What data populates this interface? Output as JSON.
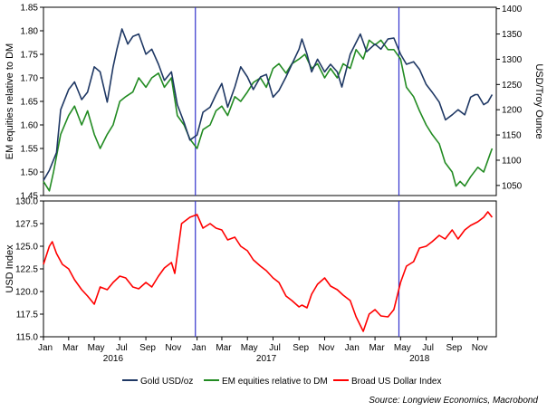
{
  "colors": {
    "gold": "#1f3864",
    "em": "#228b22",
    "usd": "#ff0000",
    "event_lines": "#3333cc",
    "frame": "#000000"
  },
  "chart_data": [
    {
      "type": "line",
      "panel": "top",
      "x_range": [
        "2016-01-01",
        "2018-12-15"
      ],
      "left_axis": {
        "label": "EM equities relative to DM",
        "ylim": [
          1.45,
          1.85
        ],
        "ticks": [
          "1.45",
          "1.50",
          "1.55",
          "1.60",
          "1.65",
          "1.70",
          "1.75",
          "1.80",
          "1.85"
        ]
      },
      "right_axis": {
        "label": "USD/Troy Ounce",
        "ylim": [
          1030,
          1403
        ],
        "ticks": [
          "1050",
          "1100",
          "1150",
          "1200",
          "1250",
          "1300",
          "1350",
          "1400"
        ]
      },
      "vertical_lines": [
        "2016-12-28",
        "2018-04-27"
      ],
      "series": [
        {
          "name": "Gold USD/oz",
          "axis": "right",
          "x": [
            "2016-01-01",
            "2016-01-15",
            "2016-02-01",
            "2016-02-11",
            "2016-03-01",
            "2016-03-15",
            "2016-04-01",
            "2016-04-15",
            "2016-05-01",
            "2016-05-15",
            "2016-06-01",
            "2016-06-15",
            "2016-06-24",
            "2016-07-06",
            "2016-07-20",
            "2016-08-01",
            "2016-08-15",
            "2016-09-01",
            "2016-09-15",
            "2016-10-01",
            "2016-10-15",
            "2016-11-01",
            "2016-11-15",
            "2016-12-01",
            "2016-12-15",
            "2017-01-01",
            "2017-01-15",
            "2017-02-01",
            "2017-02-15",
            "2017-03-01",
            "2017-03-15",
            "2017-04-01",
            "2017-04-15",
            "2017-05-01",
            "2017-05-15",
            "2017-06-01",
            "2017-06-15",
            "2017-07-01",
            "2017-07-15",
            "2017-08-01",
            "2017-08-15",
            "2017-09-01",
            "2017-09-08",
            "2017-09-20",
            "2017-10-01",
            "2017-10-15",
            "2017-11-01",
            "2017-11-15",
            "2017-12-01",
            "2017-12-12",
            "2018-01-01",
            "2018-01-25",
            "2018-02-09",
            "2018-03-01",
            "2018-03-15",
            "2018-04-01",
            "2018-04-15",
            "2018-05-01",
            "2018-05-15",
            "2018-06-01",
            "2018-06-15",
            "2018-07-01",
            "2018-07-15",
            "2018-08-01",
            "2018-08-16",
            "2018-09-01",
            "2018-09-15",
            "2018-10-01",
            "2018-10-15",
            "2018-10-26",
            "2018-11-01",
            "2018-11-15",
            "2018-11-25",
            "2018-12-05"
          ],
          "y": [
            1060,
            1080,
            1115,
            1200,
            1240,
            1255,
            1220,
            1235,
            1285,
            1275,
            1215,
            1285,
            1320,
            1360,
            1330,
            1345,
            1350,
            1310,
            1320,
            1290,
            1258,
            1275,
            1210,
            1175,
            1140,
            1150,
            1195,
            1205,
            1230,
            1252,
            1205,
            1245,
            1285,
            1265,
            1240,
            1265,
            1270,
            1225,
            1238,
            1265,
            1290,
            1320,
            1340,
            1310,
            1275,
            1300,
            1275,
            1290,
            1275,
            1245,
            1310,
            1350,
            1315,
            1330,
            1320,
            1340,
            1342,
            1310,
            1290,
            1295,
            1280,
            1250,
            1235,
            1215,
            1180,
            1190,
            1200,
            1190,
            1225,
            1230,
            1230,
            1210,
            1215,
            1230
          ]
        },
        {
          "name": "EM equities relative to DM",
          "axis": "left",
          "x": [
            "2016-01-01",
            "2016-01-15",
            "2016-01-25",
            "2016-02-11",
            "2016-03-01",
            "2016-03-15",
            "2016-04-01",
            "2016-04-15",
            "2016-05-01",
            "2016-05-15",
            "2016-06-01",
            "2016-06-15",
            "2016-07-01",
            "2016-07-15",
            "2016-08-01",
            "2016-08-15",
            "2016-09-01",
            "2016-09-15",
            "2016-10-01",
            "2016-10-15",
            "2016-11-01",
            "2016-11-15",
            "2016-12-01",
            "2016-12-15",
            "2017-01-01",
            "2017-01-15",
            "2017-02-01",
            "2017-02-15",
            "2017-03-01",
            "2017-03-15",
            "2017-04-01",
            "2017-04-15",
            "2017-05-01",
            "2017-05-15",
            "2017-06-01",
            "2017-06-15",
            "2017-07-01",
            "2017-07-15",
            "2017-08-01",
            "2017-08-15",
            "2017-09-01",
            "2017-09-15",
            "2017-10-01",
            "2017-10-15",
            "2017-11-01",
            "2017-11-15",
            "2017-12-01",
            "2017-12-15",
            "2018-01-01",
            "2018-01-15",
            "2018-02-01",
            "2018-02-15",
            "2018-03-01",
            "2018-03-15",
            "2018-04-01",
            "2018-04-15",
            "2018-05-01",
            "2018-05-15",
            "2018-06-01",
            "2018-06-15",
            "2018-07-01",
            "2018-07-15",
            "2018-08-01",
            "2018-08-15",
            "2018-09-01",
            "2018-09-10",
            "2018-09-20",
            "2018-10-01",
            "2018-10-15",
            "2018-11-01",
            "2018-11-15",
            "2018-12-01",
            "2018-12-05"
          ],
          "y": [
            1.48,
            1.46,
            1.5,
            1.58,
            1.62,
            1.64,
            1.6,
            1.63,
            1.58,
            1.55,
            1.58,
            1.6,
            1.65,
            1.66,
            1.67,
            1.7,
            1.68,
            1.7,
            1.71,
            1.68,
            1.7,
            1.62,
            1.6,
            1.57,
            1.55,
            1.59,
            1.6,
            1.63,
            1.64,
            1.62,
            1.66,
            1.65,
            1.67,
            1.69,
            1.7,
            1.68,
            1.72,
            1.73,
            1.71,
            1.73,
            1.74,
            1.75,
            1.72,
            1.73,
            1.7,
            1.72,
            1.7,
            1.73,
            1.72,
            1.76,
            1.74,
            1.78,
            1.77,
            1.78,
            1.76,
            1.76,
            1.74,
            1.68,
            1.66,
            1.63,
            1.6,
            1.58,
            1.56,
            1.52,
            1.5,
            1.47,
            1.48,
            1.47,
            1.49,
            1.51,
            1.5,
            1.54,
            1.55
          ]
        }
      ]
    },
    {
      "type": "line",
      "panel": "bottom",
      "x_range": [
        "2016-01-01",
        "2018-12-15"
      ],
      "left_axis": {
        "label": "USD Index",
        "ylim": [
          115,
          130
        ],
        "ticks": [
          "115.0",
          "117.5",
          "120.0",
          "122.5",
          "125.0",
          "127.5",
          "130.0"
        ]
      },
      "vertical_lines": [
        "2016-12-28",
        "2018-04-27"
      ],
      "series": [
        {
          "name": "Broad US Dollar Index",
          "axis": "left",
          "x": [
            "2016-01-01",
            "2016-01-15",
            "2016-01-22",
            "2016-02-01",
            "2016-02-15",
            "2016-03-01",
            "2016-03-15",
            "2016-04-01",
            "2016-04-15",
            "2016-05-01",
            "2016-05-15",
            "2016-06-01",
            "2016-06-15",
            "2016-07-01",
            "2016-07-15",
            "2016-08-01",
            "2016-08-15",
            "2016-09-01",
            "2016-09-15",
            "2016-10-01",
            "2016-10-15",
            "2016-11-01",
            "2016-11-09",
            "2016-11-25",
            "2016-12-15",
            "2017-01-01",
            "2017-01-15",
            "2017-02-01",
            "2017-02-15",
            "2017-03-01",
            "2017-03-15",
            "2017-04-01",
            "2017-04-15",
            "2017-05-01",
            "2017-05-15",
            "2017-06-01",
            "2017-06-15",
            "2017-07-01",
            "2017-07-15",
            "2017-08-01",
            "2017-08-15",
            "2017-09-01",
            "2017-09-08",
            "2017-09-20",
            "2017-10-01",
            "2017-10-15",
            "2017-11-01",
            "2017-11-15",
            "2017-12-01",
            "2017-12-15",
            "2018-01-01",
            "2018-01-15",
            "2018-02-01",
            "2018-02-15",
            "2018-03-01",
            "2018-03-15",
            "2018-04-01",
            "2018-04-15",
            "2018-05-01",
            "2018-05-15",
            "2018-06-01",
            "2018-06-15",
            "2018-07-01",
            "2018-07-15",
            "2018-08-01",
            "2018-08-15",
            "2018-09-01",
            "2018-09-15",
            "2018-10-01",
            "2018-10-15",
            "2018-11-01",
            "2018-11-15",
            "2018-11-25",
            "2018-12-05"
          ],
          "y": [
            123.0,
            125.0,
            125.5,
            124.2,
            123.0,
            122.5,
            121.3,
            120.2,
            119.5,
            118.6,
            120.5,
            120.2,
            121.0,
            121.7,
            121.5,
            120.5,
            120.3,
            121.0,
            120.5,
            121.7,
            122.6,
            123.2,
            122.0,
            127.5,
            128.2,
            128.5,
            127.0,
            127.5,
            127.0,
            126.8,
            125.7,
            126.0,
            125.0,
            124.5,
            123.5,
            122.8,
            122.3,
            121.5,
            121.0,
            119.5,
            119.0,
            118.3,
            118.5,
            118.2,
            119.7,
            120.8,
            121.5,
            120.6,
            120.2,
            119.6,
            119.0,
            117.2,
            115.6,
            117.5,
            118.0,
            117.3,
            117.2,
            118.0,
            121.0,
            122.8,
            123.3,
            124.8,
            125.0,
            125.5,
            126.2,
            125.8,
            126.8,
            125.8,
            126.8,
            127.3,
            127.7,
            128.2,
            128.8,
            128.2
          ]
        }
      ]
    }
  ],
  "x_axis": {
    "month_labels": [
      "Jan",
      "Mar",
      "May",
      "Jul",
      "Sep",
      "Nov",
      "Jan",
      "Mar",
      "May",
      "Jul",
      "Sep",
      "Nov",
      "Jan",
      "Mar",
      "May",
      "Jul",
      "Sep",
      "Nov"
    ],
    "year_labels": [
      "2016",
      "2017",
      "2018"
    ]
  },
  "legend": [
    "Gold USD/oz",
    "EM equities relative to DM",
    "Broad US Dollar Index"
  ],
  "source": "Source: Longview Economics, Macrobond"
}
